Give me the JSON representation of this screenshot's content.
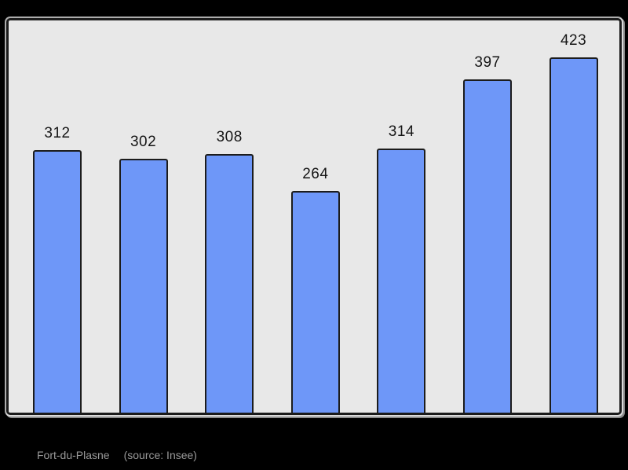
{
  "chart_data": {
    "type": "bar",
    "values": [
      312,
      302,
      308,
      264,
      314,
      397,
      423
    ],
    "data_labels": [
      "312",
      "302",
      "308",
      "264",
      "314",
      "397",
      "423"
    ],
    "title": "",
    "xlabel": "",
    "ylabel": "",
    "ylim": [
      0,
      469
    ],
    "grid": false,
    "legend": false,
    "bar_color": "#6e97f8",
    "bar_border_color": "#1c1c1c",
    "plot_background": "#e8e8e8",
    "page_background": "#000000"
  },
  "caption": {
    "commune": "Fort-du-Plasne",
    "source": "(source: Insee)"
  },
  "colors": {
    "bar_fill": "#6e97f8",
    "bar_border": "#1c1c1c",
    "plot_bg": "#e8e8e8",
    "frame_border": "#1b1b1b",
    "label_color": "#151515",
    "caption_color": "#9a9a9a",
    "page_bg": "#000000"
  }
}
